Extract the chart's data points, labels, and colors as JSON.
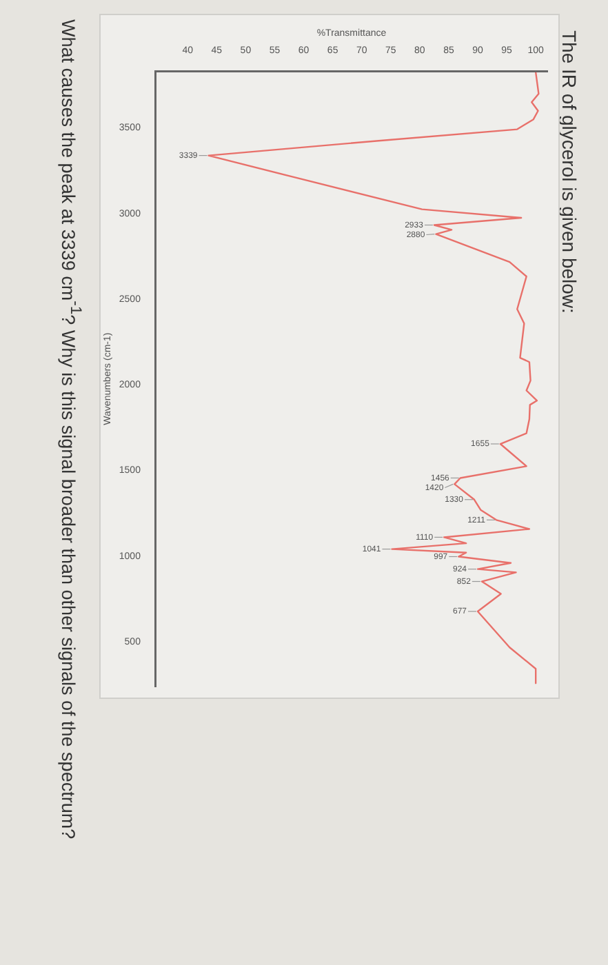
{
  "chart_data": {
    "type": "line",
    "title": "The IR of glycerol is given below:",
    "xlabel": "%Transmittance",
    "ylabel": "Wavenumbers (cm-1)",
    "x": [
      100,
      100.5,
      99.3,
      100.4,
      99.6,
      96.8,
      72.9,
      43.6,
      57.8,
      80.4,
      97.5,
      82.5,
      85.5,
      82.8,
      95.5,
      98.4,
      96.8,
      98,
      97.3,
      98.9,
      99.1,
      98.4,
      100.2,
      99,
      98.9,
      98.4,
      93.9,
      98.4,
      87,
      86,
      89.4,
      90.5,
      93.2,
      98.9,
      84.2,
      88,
      75.2,
      88,
      86.7,
      95.7,
      90,
      96.6,
      90.7,
      94,
      90,
      95.5,
      100,
      100
    ],
    "series": [
      {
        "color": "#e8706a",
        "values": [
          3825,
          3700,
          3650,
          3600,
          3550,
          3492,
          3425,
          3339,
          3217,
          3025,
          2975,
          2933,
          2905,
          2880,
          2717,
          2633,
          2442,
          2358,
          2158,
          2133,
          2025,
          1967,
          1908,
          1883,
          1800,
          1717,
          1655,
          1525,
          1456,
          1420,
          1330,
          1270,
          1211,
          1158,
          1110,
          1075,
          1041,
          1020,
          997,
          960,
          924,
          905,
          852,
          780,
          677,
          467,
          342,
          258
        ]
      }
    ],
    "xlim": [
      34.5,
      102
    ],
    "ylim": [
      240,
      3830
    ],
    "xticks": [
      40,
      45,
      50,
      55,
      60,
      65,
      70,
      75,
      80,
      85,
      90,
      95,
      100
    ],
    "yticks": [
      3500,
      3000,
      2500,
      2000,
      1500,
      1000,
      500
    ],
    "grid": false,
    "marker": "none",
    "annotations": [
      {
        "text": "3339",
        "x": 43.6,
        "y": 3339
      },
      {
        "text": "2933",
        "x": 82.5,
        "y": 2933
      },
      {
        "text": "2880",
        "x": 82.8,
        "y": 2880
      },
      {
        "text": "1655",
        "x": 93.9,
        "y": 1655
      },
      {
        "text": "1456",
        "x": 87,
        "y": 1456
      },
      {
        "text": "1420",
        "x": 86,
        "y": 1420
      },
      {
        "text": "1330",
        "x": 89.4,
        "y": 1330
      },
      {
        "text": "1211",
        "x": 93.2,
        "y": 1211
      },
      {
        "text": "1110",
        "x": 84.2,
        "y": 1110
      },
      {
        "text": "1041",
        "x": 75.2,
        "y": 1041
      },
      {
        "text": "997",
        "x": 86.7,
        "y": 997
      },
      {
        "text": "924",
        "x": 90,
        "y": 924
      },
      {
        "text": "852",
        "x": 90.7,
        "y": 852
      },
      {
        "text": "677",
        "x": 90,
        "y": 677
      },
      "What causes the peak at 3339 cm$^{-1}$? Why is this signal broader than other signals of the spectrum?"
    ]
  }
}
